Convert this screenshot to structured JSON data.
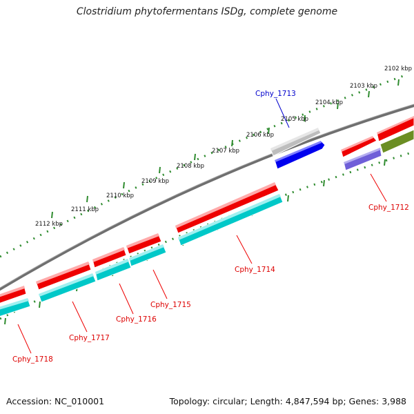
{
  "title": "Clostridium phytofermentans ISDg, complete genome",
  "accession": "Accession: NC_010001",
  "summary": "Topology: circular; Length: 4,847,594 bp; Genes: 3,988",
  "colors": {
    "backbone": "#7a7a7a",
    "ruler": "#2e8b2e",
    "red_cds": "#ee0000",
    "cyan_cds": "#00c8c8",
    "highlight_label": "#0000cc",
    "default_label": "#dd0000"
  },
  "ruler": {
    "labels": [
      "2102 kbp",
      "2103 kbp",
      "2104 kbp",
      "2105 kbp",
      "2106 kbp",
      "2107 kbp",
      "2108 kbp",
      "2109 kbp",
      "2110 kbp",
      "2111 kbp",
      "2112 kbp"
    ]
  },
  "genes": [
    {
      "label": "Cphy_1712",
      "highlighted": false
    },
    {
      "label": "Cphy_1713",
      "highlighted": true
    },
    {
      "label": "Cphy_1714",
      "highlighted": false
    },
    {
      "label": "Cphy_1715",
      "highlighted": false
    },
    {
      "label": "Cphy_1716",
      "highlighted": false
    },
    {
      "label": "Cphy_1717",
      "highlighted": false
    },
    {
      "label": "Cphy_1718",
      "highlighted": false
    }
  ]
}
